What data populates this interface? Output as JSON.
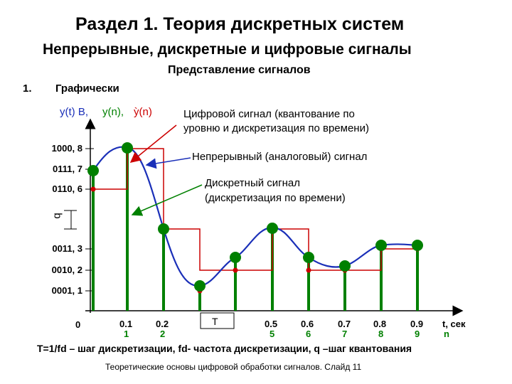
{
  "header": {
    "section_title": "Раздел 1. Теория дискретных систем",
    "subtitle": "Непрерывные, дискретные и цифровые сигналы",
    "topic": "Представление сигналов"
  },
  "list_item": {
    "number": "1.",
    "label": "Графически"
  },
  "y_axis_labels": {
    "continuous": "y(t) B,",
    "discrete": "y(n),",
    "digital": "ỳ(n)"
  },
  "levels": [
    "1000, 8",
    "0111, 7",
    "0110, 6",
    "0011, 3",
    "0010, 2",
    "0001, 1"
  ],
  "q_label": "q",
  "origin_label": "0",
  "x_ticks": {
    "time": [
      "0.1",
      "0.2",
      "0.5",
      "0.6",
      "0.7",
      "0.8",
      "0.9"
    ],
    "index": [
      "1",
      "2",
      "5",
      "6",
      "7",
      "8",
      "9"
    ],
    "unit_time": "t, сек",
    "unit_index": "n",
    "period": "T"
  },
  "annotations": {
    "digital_line1": "Цифровой сигнал (квантование по",
    "digital_line2": "уровню и дискретизация по времени)",
    "analog": "Непрерывный (аналоговый) сигнал",
    "discrete_line1": "Дискретный сигнал",
    "discrete_line2": "(дискретизация по времени)"
  },
  "caption": "T=1/fd – шаг дискретизации, fd- частота дискретизации, q –шаг квантования",
  "footer": "Теоретические основы цифровой обработки сигналов. Слайд 11",
  "colors": {
    "analog_curve": "#1a2fb8",
    "discrete_samples": "#008000",
    "digital_staircase": "#cc0000",
    "annotation_arrow": "#cc0000"
  }
}
